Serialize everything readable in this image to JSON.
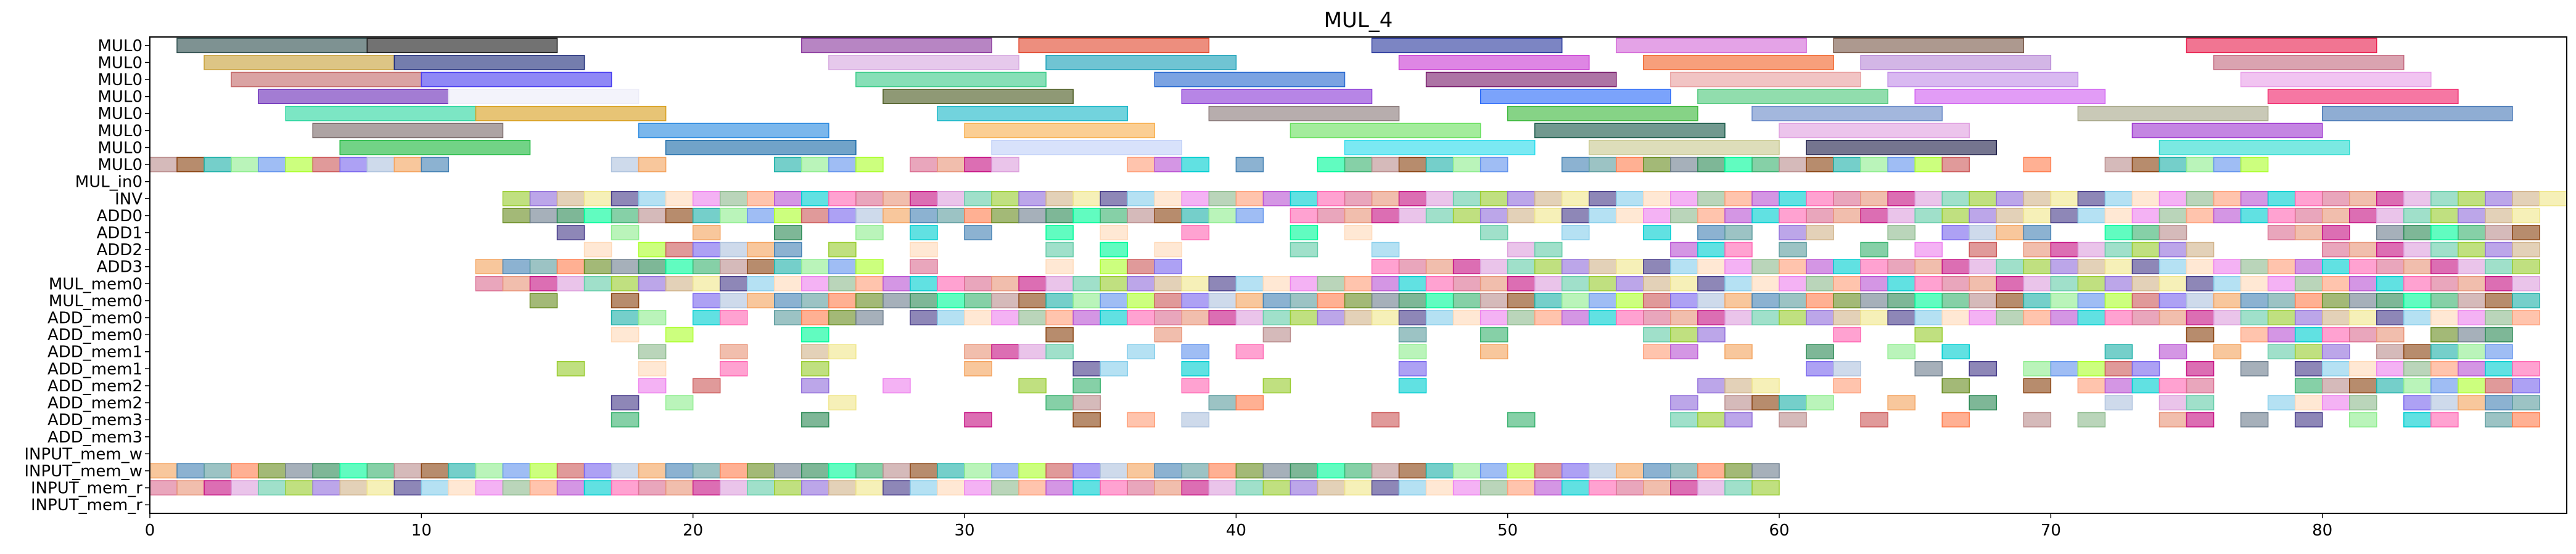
{
  "chart_data": {
    "type": "gantt",
    "title": "MUL_4",
    "xlim": [
      0,
      89
    ],
    "xticks": [
      0,
      10,
      20,
      30,
      40,
      50,
      60,
      70,
      80
    ],
    "grid": false,
    "rows": [
      "MUL0",
      "MUL0",
      "MUL0",
      "MUL0",
      "MUL0",
      "MUL0",
      "MUL0",
      "MUL0",
      "MUL_in0",
      "INV",
      "ADD0",
      "ADD1",
      "ADD2",
      "ADD3",
      "MUL_mem0",
      "MUL_mem0",
      "ADD_mem0",
      "ADD_mem0",
      "ADD_mem1",
      "ADD_mem1",
      "ADD_mem2",
      "ADD_mem2",
      "ADD_mem3",
      "ADD_mem3",
      "INPUT_mem_w",
      "INPUT_mem_w",
      "INPUT_mem_r",
      "INPUT_mem_r"
    ],
    "long_tasks": [
      {
        "row": 0,
        "starts": [
          1,
          8,
          24,
          32,
          45,
          54,
          62,
          75
        ],
        "colors": [
          "#2f4f4f",
          "#1c1c1c",
          "#8b3a9e",
          "#e2492f",
          "#2b3a9e",
          "#d46ad8",
          "#7a5a4a",
          "#e8204f"
        ]
      },
      {
        "row": 1,
        "starts": [
          2,
          9,
          25,
          33,
          46,
          55,
          63,
          76
        ],
        "colors": [
          "#c8a13a",
          "#1f2d7a",
          "#d6a8e0",
          "#19a0b8",
          "#c93bd4",
          "#f2642a",
          "#b889d6",
          "#c46a80"
        ]
      },
      {
        "row": 2,
        "starts": [
          3,
          10,
          26,
          37,
          47,
          56,
          64,
          77
        ],
        "colors": [
          "#c46a6a",
          "#4a3ff0",
          "#3dcc8a",
          "#2a6ad0",
          "#7a1f6e",
          "#e8a0a0",
          "#c28ee8",
          "#e8a0e8"
        ]
      },
      {
        "row": 3,
        "starts": [
          4,
          11,
          27,
          38,
          49,
          57,
          65,
          78
        ],
        "colors": [
          "#6a2bb8",
          "#ececf8",
          "#4a5a20",
          "#8a3ad6",
          "#2a6af8",
          "#4ec87a",
          "#d060f0",
          "#f0246a"
        ]
      },
      {
        "row": 4,
        "starts": [
          5,
          12,
          29,
          39,
          50,
          59,
          71,
          80
        ],
        "colors": [
          "#2bd6a0",
          "#d8a020",
          "#1cb8c8",
          "#8a7a7a",
          "#3cb83c",
          "#6a8ac8",
          "#a8a88a",
          "#4a7ab8"
        ]
      },
      {
        "row": 5,
        "starts": [
          6,
          18,
          30,
          42,
          51,
          60,
          73
        ],
        "colors": [
          "#7a6a6a",
          "#2a8ae0",
          "#f8b050",
          "#6ae060",
          "#1a5a4a",
          "#e0a0e0",
          "#a03ad0"
        ]
      },
      {
        "row": 6,
        "starts": [
          7,
          19,
          31,
          44,
          53,
          61,
          74
        ],
        "colors": [
          "#1cb83c",
          "#1a6aa8",
          "#c0d0f8",
          "#2adcec",
          "#c8c890",
          "#20204a",
          "#2adcd0"
        ]
      }
    ],
    "short_rows": [
      {
        "row": 7,
        "starts": [
          0,
          1,
          2,
          3,
          4,
          5,
          6,
          7,
          8,
          9,
          10,
          17,
          18,
          23,
          24,
          25,
          26,
          28,
          29,
          30,
          31,
          36,
          37,
          38,
          40,
          43,
          44,
          45,
          46,
          47,
          48,
          49,
          52,
          53,
          54,
          55,
          56,
          57,
          58,
          59,
          60,
          61,
          62,
          63,
          64,
          65,
          66,
          69,
          72,
          73,
          74,
          75,
          76,
          77
        ]
      },
      {
        "row": 8,
        "starts": []
      },
      {
        "row": 9,
        "starts": [
          13,
          14,
          15,
          16,
          17,
          18,
          19,
          20,
          21,
          22,
          23,
          24,
          25,
          26,
          27,
          28,
          29,
          30,
          31,
          32,
          33,
          34,
          35,
          36,
          37,
          38,
          39,
          40,
          41,
          42,
          43,
          44,
          45,
          46,
          47,
          48,
          49,
          50,
          51,
          52,
          53,
          54,
          55,
          56,
          57,
          58,
          59,
          60,
          61,
          62,
          63,
          64,
          65,
          66,
          67,
          68,
          69,
          70,
          71,
          72,
          73,
          74,
          75,
          76,
          77,
          78,
          79,
          80,
          81,
          82,
          83,
          84,
          85,
          86,
          87,
          88
        ]
      },
      {
        "row": 10,
        "starts": [
          13,
          14,
          15,
          16,
          17,
          18,
          19,
          20,
          21,
          22,
          23,
          24,
          25,
          26,
          27,
          28,
          29,
          30,
          31,
          32,
          33,
          34,
          35,
          36,
          37,
          38,
          39,
          40,
          42,
          43,
          44,
          45,
          46,
          47,
          48,
          49,
          50,
          51,
          52,
          53,
          54,
          55,
          56,
          57,
          58,
          59,
          60,
          61,
          62,
          63,
          64,
          65,
          66,
          67,
          68,
          69,
          70,
          71,
          72,
          73,
          74,
          75,
          76,
          77,
          78,
          79,
          80,
          81,
          82,
          83,
          84,
          85,
          86,
          87
        ]
      },
      {
        "row": 11,
        "starts": [
          15,
          17,
          20,
          23,
          26,
          28,
          30,
          33,
          35,
          38,
          42,
          44,
          49,
          52,
          55,
          57,
          58,
          60,
          61,
          64,
          66,
          67,
          68,
          69,
          72,
          73,
          74,
          78,
          79,
          80,
          82,
          83,
          84,
          85,
          86,
          87
        ]
      },
      {
        "row": 12,
        "starts": [
          16,
          18,
          19,
          20,
          21,
          22,
          23,
          25,
          28,
          33,
          35,
          37,
          42,
          45,
          50,
          51,
          56,
          57,
          58,
          60,
          63,
          65,
          67,
          69,
          70,
          71,
          72,
          73,
          74,
          75,
          80,
          81,
          82,
          83,
          84,
          85,
          86,
          87
        ]
      },
      {
        "row": 13,
        "starts": [
          12,
          13,
          14,
          15,
          16,
          17,
          18,
          19,
          20,
          21,
          22,
          23,
          24,
          25,
          26,
          28,
          33,
          35,
          36,
          37,
          45,
          46,
          47,
          48,
          49,
          50,
          51,
          52,
          53,
          54,
          55,
          56,
          57,
          58,
          59,
          60,
          61,
          62,
          63,
          64,
          65,
          66,
          67,
          68,
          69,
          70,
          71,
          72,
          73,
          74,
          75,
          76,
          77,
          78,
          79,
          80,
          81,
          82,
          83,
          84,
          85,
          86,
          87
        ]
      },
      {
        "row": 14,
        "starts": [
          12,
          13,
          14,
          15,
          16,
          17,
          18,
          19,
          20,
          21,
          22,
          23,
          24,
          25,
          26,
          27,
          28,
          29,
          30,
          31,
          32,
          33,
          34,
          35,
          36,
          37,
          38,
          39,
          40,
          41,
          42,
          43,
          44,
          45,
          46,
          47,
          48,
          49,
          50,
          51,
          52,
          53,
          54,
          55,
          56,
          57,
          58,
          59,
          60,
          61,
          62,
          63,
          64,
          65,
          66,
          67,
          68,
          69,
          70,
          71,
          72,
          73,
          74,
          75,
          76,
          77,
          78,
          79,
          80,
          81,
          82,
          83,
          84,
          85,
          86,
          87
        ]
      },
      {
        "row": 15,
        "starts": [
          14,
          17,
          20,
          21,
          22,
          23,
          24,
          25,
          26,
          27,
          28,
          29,
          30,
          31,
          32,
          33,
          34,
          35,
          36,
          37,
          38,
          39,
          40,
          41,
          42,
          43,
          44,
          45,
          46,
          47,
          48,
          49,
          50,
          51,
          52,
          53,
          54,
          55,
          56,
          57,
          58,
          59,
          60,
          61,
          62,
          63,
          64,
          65,
          66,
          67,
          68,
          69,
          70,
          71,
          72,
          73,
          74,
          75,
          76,
          77,
          78,
          79,
          80,
          81,
          82,
          83,
          84,
          85,
          86,
          87
        ]
      },
      {
        "row": 16,
        "starts": [
          17,
          18,
          20,
          21,
          23,
          24,
          25,
          26,
          28,
          29,
          30,
          31,
          32,
          33,
          34,
          35,
          36,
          37,
          38,
          39,
          40,
          41,
          42,
          43,
          44,
          45,
          46,
          47,
          48,
          49,
          50,
          51,
          52,
          53,
          54,
          55,
          56,
          57,
          58,
          59,
          60,
          61,
          62,
          63,
          64,
          65,
          66,
          67,
          68,
          69,
          70,
          71,
          72,
          73,
          74,
          75,
          76,
          77,
          78,
          79,
          80,
          81,
          82,
          83,
          84,
          85,
          86,
          87
        ]
      },
      {
        "row": 17,
        "starts": [
          17,
          19,
          24,
          33,
          37,
          41,
          46,
          49,
          55,
          56,
          57,
          62,
          65,
          75,
          77,
          78,
          79,
          80,
          81,
          82,
          84,
          85,
          86
        ]
      },
      {
        "row": 18,
        "starts": [
          18,
          21,
          24,
          25,
          30,
          31,
          32,
          33,
          36,
          38,
          40,
          46,
          49,
          55,
          56,
          58,
          61,
          64,
          66,
          72,
          74,
          76,
          78,
          79,
          80,
          82,
          83,
          84,
          85,
          86
        ]
      },
      {
        "row": 19,
        "starts": [
          15,
          18,
          21,
          24,
          30,
          34,
          35,
          38,
          46,
          61,
          62,
          65,
          67,
          69,
          70,
          71,
          72,
          73,
          75,
          77,
          79,
          80,
          81,
          82,
          83,
          84,
          85,
          86,
          87
        ]
      },
      {
        "row": 20,
        "starts": [
          18,
          20,
          24,
          27,
          32,
          34,
          38,
          41,
          46,
          57,
          58,
          59,
          62,
          66,
          69,
          71,
          72,
          73,
          74,
          75,
          79,
          80,
          81,
          82,
          83,
          84,
          85,
          86,
          87
        ]
      },
      {
        "row": 21,
        "starts": [
          17,
          19,
          25,
          33,
          34,
          39,
          40,
          56,
          58,
          59,
          60,
          61,
          64,
          67,
          72,
          74,
          75,
          78,
          79,
          80,
          81,
          83,
          84,
          85,
          86,
          87
        ]
      },
      {
        "row": 22,
        "starts": [
          17,
          24,
          30,
          34,
          36,
          38,
          45,
          50,
          56,
          57,
          58,
          60,
          63,
          66,
          69,
          71,
          74,
          75,
          77,
          79,
          81,
          83,
          84,
          86,
          87
        ]
      },
      {
        "row": 23,
        "starts": []
      },
      {
        "row": 24,
        "starts": []
      },
      {
        "row": 25,
        "starts": [
          0,
          1,
          2,
          3,
          4,
          5,
          6,
          7,
          8,
          9,
          10,
          11,
          12,
          13,
          14,
          15,
          16,
          17,
          18,
          19,
          20,
          21,
          22,
          23,
          24,
          25,
          26,
          27,
          28,
          29,
          30,
          31,
          32,
          33,
          34,
          35,
          36,
          37,
          38,
          39,
          40,
          41,
          42,
          43,
          44,
          45,
          46,
          47,
          48,
          49,
          50,
          51,
          52,
          53,
          54,
          55,
          56,
          57,
          58,
          59
        ]
      },
      {
        "row": 26,
        "starts": [
          0,
          1,
          2,
          3,
          4,
          5,
          6,
          7,
          8,
          9,
          10,
          11,
          12,
          13,
          14,
          15,
          16,
          17,
          18,
          19,
          20,
          21,
          22,
          23,
          24,
          25,
          26,
          27,
          28,
          29,
          30,
          31,
          32,
          33,
          34,
          35,
          36,
          37,
          38,
          39,
          40,
          41,
          42,
          43,
          44,
          45,
          46,
          47,
          48,
          49,
          50,
          51,
          52,
          53,
          54,
          55,
          56,
          57,
          58,
          59
        ]
      }
    ],
    "palette": [
      "#8fbc8f",
      "#f4a460",
      "#9370db",
      "#20b2aa",
      "#ff69b4",
      "#6b8e23",
      "#87ceeb",
      "#cd5c5c",
      "#dda0dd",
      "#3cb371",
      "#ffa07a",
      "#4682b4",
      "#d2b48c",
      "#90ee90",
      "#db7093",
      "#708090",
      "#ffdab9",
      "#7b68ee",
      "#66cdaa",
      "#bc8f8f",
      "#ba55d3",
      "#5f9ea0",
      "#f0e68c",
      "#6495ed",
      "#e9967a",
      "#2e8b57",
      "#ee82ee",
      "#b0c4de",
      "#9acd32",
      "#8b4513",
      "#00ced1",
      "#ff7f50",
      "#483d8b",
      "#adff2f",
      "#c71585",
      "#00fa9a"
    ]
  }
}
